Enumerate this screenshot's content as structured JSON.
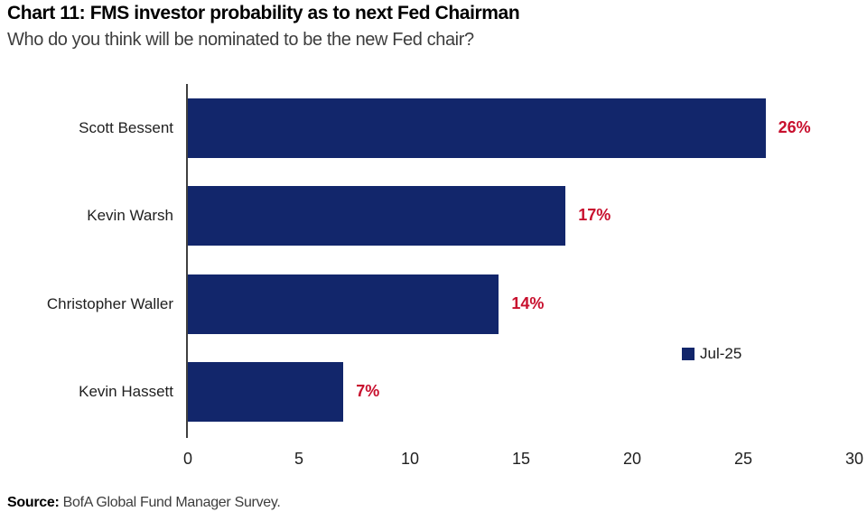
{
  "header": {
    "title": "Chart 11: FMS investor probability as to next Fed Chairman",
    "subtitle": "Who do you think will be nominated to be the new Fed chair?"
  },
  "chart_data": {
    "type": "bar",
    "orientation": "horizontal",
    "title": "Chart 11: FMS investor probability as to next Fed Chairman",
    "subtitle": "Who do you think will be nominated to be the new Fed chair?",
    "categories": [
      "Scott Bessent",
      "Kevin Warsh",
      "Christopher Waller",
      "Kevin Hassett"
    ],
    "series": [
      {
        "name": "Jul-25",
        "values": [
          26,
          17,
          14,
          7
        ]
      }
    ],
    "value_labels": [
      "26%",
      "17%",
      "14%",
      "7%"
    ],
    "xticks": [
      0,
      5,
      10,
      15,
      20,
      25,
      30
    ],
    "xlim": [
      0,
      30
    ],
    "grid": false,
    "legend": {
      "label": "Jul-25",
      "position": "right-middle"
    },
    "colors": {
      "bar": "#12266b",
      "value_label": "#c8102e",
      "axis": "#3f3f3f"
    }
  },
  "footer": {
    "source_label": "Source:",
    "source_text": " BofA Global Fund Manager Survey."
  }
}
